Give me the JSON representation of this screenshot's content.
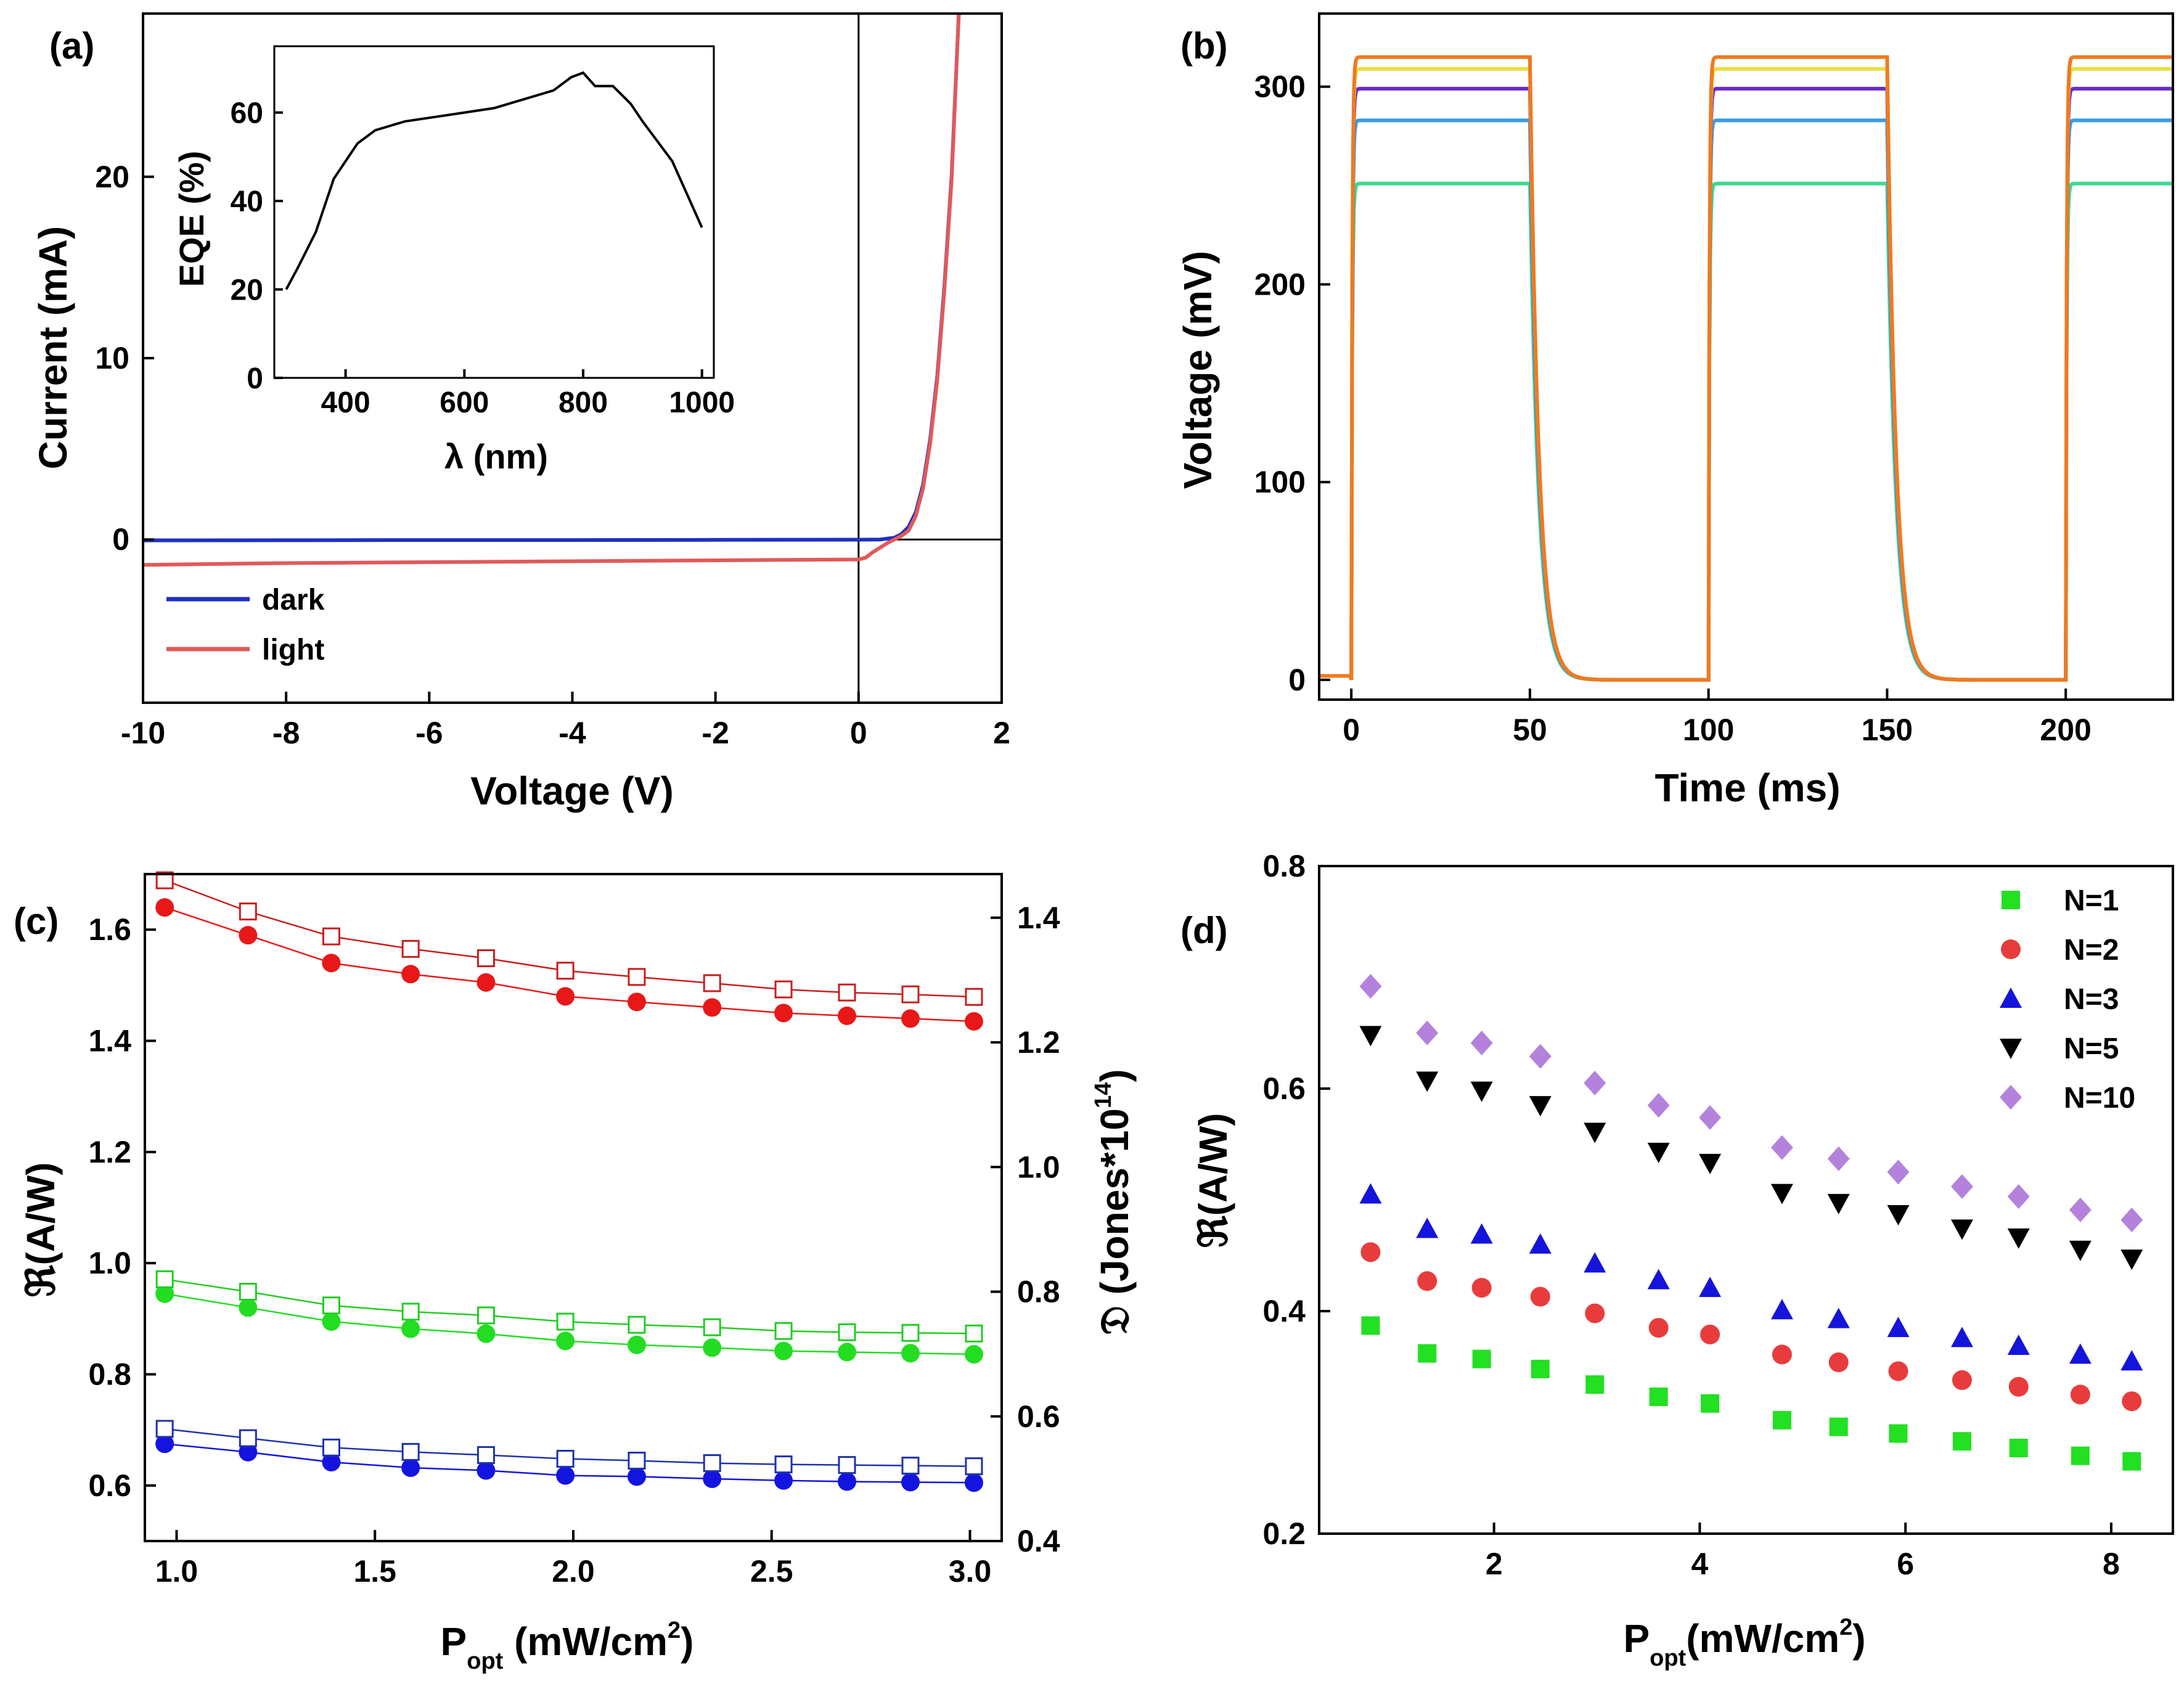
{
  "chart_data": [
    {
      "id": "a",
      "type": "line",
      "panel_label": "(a)",
      "xlabel": "Voltage (V)",
      "ylabel": "Current (mA)",
      "xlim": [
        -10,
        2
      ],
      "ylim": [
        -9,
        29
      ],
      "xticks": [
        -10,
        -8,
        -6,
        -4,
        -2,
        0,
        2
      ],
      "xtick_labels": [
        "-10",
        "-8",
        "-6",
        "-4",
        "-2",
        "0",
        "2"
      ],
      "yticks": [
        0,
        10,
        20
      ],
      "ytick_labels": [
        "0",
        "10",
        "20"
      ],
      "legend": {
        "position": "lower-left",
        "entries": [
          {
            "label": "dark",
            "color": "#1f2fbf"
          },
          {
            "label": "light",
            "color": "#e05a5a"
          }
        ]
      },
      "series": [
        {
          "name": "dark",
          "color": "#1f2fbf",
          "x": [
            -10,
            -8,
            -6,
            -4,
            -2,
            0,
            0.3,
            0.5,
            0.6,
            0.7,
            0.8,
            0.9,
            1.0,
            1.1,
            1.2,
            1.3,
            1.4
          ],
          "y": [
            -0.05,
            -0.04,
            -0.03,
            -0.03,
            -0.02,
            -0.01,
            0.0,
            0.1,
            0.3,
            0.7,
            1.5,
            3.0,
            5.5,
            9.0,
            14.0,
            20.0,
            29.0
          ]
        },
        {
          "name": "light",
          "color": "#e05a5a",
          "x": [
            -10,
            -8,
            -6,
            -4,
            -2,
            -1,
            0,
            0.1,
            0.2,
            0.4,
            0.6,
            0.7,
            0.8,
            0.9,
            1.0,
            1.1,
            1.2,
            1.3,
            1.4
          ],
          "y": [
            -1.4,
            -1.3,
            -1.25,
            -1.2,
            -1.15,
            -1.12,
            -1.1,
            -1.0,
            -0.7,
            -0.2,
            0.2,
            0.5,
            1.3,
            2.8,
            5.3,
            8.8,
            13.8,
            19.8,
            29.0
          ]
        }
      ],
      "inset": {
        "type": "line",
        "xlabel": "λ (nm)",
        "ylabel": "EQE (%)",
        "xlim": [
          280,
          1020
        ],
        "ylim": [
          0,
          75
        ],
        "xticks": [
          400,
          600,
          800,
          1000
        ],
        "xtick_labels": [
          "400",
          "600",
          "800",
          "1000"
        ],
        "yticks": [
          0,
          20,
          40,
          60
        ],
        "ytick_labels": [
          "0",
          "20",
          "40",
          "60"
        ],
        "color": "#000000",
        "x": [
          300,
          320,
          350,
          380,
          400,
          420,
          450,
          500,
          550,
          600,
          650,
          700,
          750,
          780,
          800,
          820,
          850,
          880,
          900,
          950,
          1000
        ],
        "y": [
          20,
          25,
          33,
          45,
          49,
          53,
          56,
          58,
          59,
          60,
          61,
          63,
          65,
          68,
          69,
          66,
          66,
          62,
          58,
          49,
          34
        ]
      }
    },
    {
      "id": "b",
      "type": "line",
      "panel_label": "(b)",
      "xlabel": "Time (ms)",
      "ylabel": "Voltage (mV)",
      "xlim": [
        -9,
        230
      ],
      "ylim": [
        -10,
        337
      ],
      "xticks": [
        0,
        50,
        100,
        150,
        200
      ],
      "xtick_labels": [
        "0",
        "50",
        "100",
        "150",
        "200"
      ],
      "yticks": [
        0,
        100,
        200,
        300
      ],
      "ytick_labels": [
        "0",
        "100",
        "200",
        "300"
      ],
      "period_ms": 100,
      "on_ms": 50,
      "fall_tau_ms": 2.5,
      "series": [
        {
          "name": "level-1",
          "color": "#40d890",
          "high": 251
        },
        {
          "name": "level-2",
          "color": "#3a9ee0",
          "high": 283
        },
        {
          "name": "level-3",
          "color": "#6a2ccc",
          "high": 299
        },
        {
          "name": "level-4",
          "color": "#e8e040",
          "high": 309
        },
        {
          "name": "level-5",
          "color": "#f07a20",
          "high": 315
        }
      ]
    },
    {
      "id": "c",
      "type": "scatter",
      "panel_label": "(c)",
      "xlabel": "P",
      "xlabel_sub": "opt",
      "xlabel_unit": " (mW/cm",
      "xlabel_sup": "2",
      "xlabel_close": ")",
      "ylabel": "ℜ(A/W)",
      "ylabel_right": "𝔇 (Jones*10",
      "ylabel_right_sup": "14",
      "ylabel_right_close": ")",
      "xlim": [
        0.92,
        3.08
      ],
      "ylim": [
        0.5,
        1.7
      ],
      "ylim_right": [
        0.4,
        1.47
      ],
      "xticks": [
        1.0,
        1.5,
        2.0,
        2.5,
        3.0
      ],
      "xtick_labels": [
        "1.0",
        "1.5",
        "2.0",
        "2.5",
        "3.0"
      ],
      "yticks": [
        0.6,
        0.8,
        1.0,
        1.2,
        1.4,
        1.6
      ],
      "ytick_labels": [
        "0.6",
        "0.8",
        "1.0",
        "1.2",
        "1.4",
        "1.6"
      ],
      "yticks_right": [
        0.4,
        0.6,
        0.8,
        1.0,
        1.2,
        1.4
      ],
      "ytick_labels_right": [
        "0.4",
        "0.6",
        "0.8",
        "1.0",
        "1.2",
        "1.4"
      ],
      "x": [
        0.97,
        1.18,
        1.39,
        1.59,
        1.78,
        1.98,
        2.16,
        2.35,
        2.53,
        2.69,
        2.85,
        3.01
      ],
      "series": [
        {
          "name": "R-red",
          "axis": "left",
          "marker": "filled-circle",
          "color": "#e81818",
          "values": [
            1.64,
            1.59,
            1.54,
            1.52,
            1.505,
            1.48,
            1.47,
            1.46,
            1.45,
            1.445,
            1.44,
            1.435
          ]
        },
        {
          "name": "R-green",
          "axis": "left",
          "marker": "filled-circle",
          "color": "#22dd22",
          "values": [
            0.945,
            0.92,
            0.895,
            0.882,
            0.873,
            0.86,
            0.853,
            0.848,
            0.842,
            0.84,
            0.838,
            0.836
          ]
        },
        {
          "name": "R-blue",
          "axis": "left",
          "marker": "filled-circle",
          "color": "#1414e0",
          "values": [
            0.675,
            0.66,
            0.642,
            0.632,
            0.627,
            0.618,
            0.616,
            0.612,
            0.609,
            0.607,
            0.606,
            0.605
          ]
        },
        {
          "name": "D-red",
          "axis": "right",
          "marker": "open-square",
          "color": "#c81e1e",
          "values": [
            1.46,
            1.41,
            1.37,
            1.35,
            1.335,
            1.315,
            1.305,
            1.295,
            1.285,
            1.28,
            1.277,
            1.273
          ]
        },
        {
          "name": "D-green",
          "axis": "right",
          "marker": "open-square",
          "color": "#22cc22",
          "values": [
            0.82,
            0.8,
            0.778,
            0.768,
            0.762,
            0.752,
            0.747,
            0.743,
            0.737,
            0.735,
            0.734,
            0.733
          ]
        },
        {
          "name": "D-blue",
          "axis": "right",
          "marker": "open-square",
          "color": "#1e32aa",
          "values": [
            0.58,
            0.565,
            0.55,
            0.543,
            0.538,
            0.532,
            0.529,
            0.525,
            0.523,
            0.522,
            0.521,
            0.52
          ]
        }
      ]
    },
    {
      "id": "d",
      "type": "scatter",
      "panel_label": "(d)",
      "xlabel": "P",
      "xlabel_sub": "opt",
      "xlabel_unit": "(mW/cm",
      "xlabel_sup": "2",
      "xlabel_close": ")",
      "ylabel": "ℜ(A/W)",
      "xlim": [
        0.3,
        8.6
      ],
      "ylim": [
        0.2,
        0.8
      ],
      "xticks": [
        2,
        4,
        6,
        8
      ],
      "xtick_labels": [
        "2",
        "4",
        "6",
        "8"
      ],
      "yticks": [
        0.2,
        0.4,
        0.6,
        0.8
      ],
      "ytick_labels": [
        "0.2",
        "0.4",
        "0.6",
        "0.8"
      ],
      "legend": {
        "position": "top-right"
      },
      "x": [
        0.8,
        1.35,
        1.88,
        2.45,
        2.98,
        3.6,
        4.1,
        4.8,
        5.35,
        5.93,
        6.55,
        7.1,
        7.7,
        8.2
      ],
      "series": [
        {
          "name": "N=1",
          "marker": "square",
          "color": "#22e022",
          "values": [
            0.387,
            0.362,
            0.357,
            0.348,
            0.334,
            0.323,
            0.317,
            0.302,
            0.296,
            0.29,
            0.283,
            0.277,
            0.27,
            0.265
          ]
        },
        {
          "name": "N=2",
          "marker": "circle",
          "color": "#e83c3c",
          "values": [
            0.453,
            0.427,
            0.421,
            0.413,
            0.398,
            0.385,
            0.379,
            0.361,
            0.354,
            0.346,
            0.338,
            0.332,
            0.325,
            0.319
          ]
        },
        {
          "name": "N=3",
          "marker": "triangle-up",
          "color": "#1414dc",
          "values": [
            0.505,
            0.474,
            0.469,
            0.46,
            0.443,
            0.428,
            0.421,
            0.401,
            0.393,
            0.385,
            0.376,
            0.369,
            0.361,
            0.355
          ]
        },
        {
          "name": "N=5",
          "marker": "triangle-down",
          "color": "#000000",
          "values": [
            0.648,
            0.607,
            0.598,
            0.585,
            0.561,
            0.543,
            0.533,
            0.506,
            0.497,
            0.487,
            0.474,
            0.466,
            0.455,
            0.447
          ]
        },
        {
          "name": "N=10",
          "marker": "diamond",
          "color": "#b482dc",
          "values": [
            0.692,
            0.65,
            0.641,
            0.629,
            0.605,
            0.585,
            0.574,
            0.547,
            0.537,
            0.525,
            0.512,
            0.503,
            0.491,
            0.482
          ]
        }
      ]
    }
  ]
}
